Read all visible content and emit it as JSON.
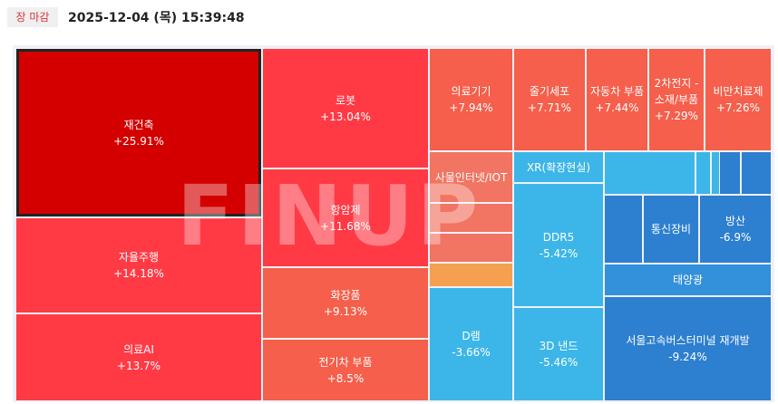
{
  "header": {
    "badge": "장 마감",
    "timestamp": "2025-12-04 (목) 15:39:48"
  },
  "watermark": "FINUP",
  "tiles": [
    {
      "label": "재건축",
      "change": "+25.91%"
    },
    {
      "label": "자율주행",
      "change": "+14.18%"
    },
    {
      "label": "의료AI",
      "change": "+13.7%"
    },
    {
      "label": "로봇",
      "change": "+13.04%"
    },
    {
      "label": "항암제",
      "change": "+11.68%"
    },
    {
      "label": "화장품",
      "change": "+9.13%"
    },
    {
      "label": "전기차 부품",
      "change": "+8.5%"
    },
    {
      "label": "의료기기",
      "change": "+7.94%"
    },
    {
      "label": "줄기세포",
      "change": "+7.71%"
    },
    {
      "label": "자동차 부품",
      "change": "+7.44%"
    },
    {
      "label": "2차전지 - 소재/부품",
      "change": "+7.29%"
    },
    {
      "label": "비만치료제",
      "change": "+7.26%"
    },
    {
      "label": "사물인터넷/IOT"
    },
    {
      "label": "D램",
      "change": "-3.66%"
    },
    {
      "label": "XR(확장현실)"
    },
    {
      "label": "DDR5",
      "change": "-5.42%"
    },
    {
      "label": "3D 낸드",
      "change": "-5.46%"
    },
    {
      "label": "통신장비"
    },
    {
      "label": "방산",
      "change": "-6.9%"
    },
    {
      "label": "태양광"
    },
    {
      "label": "서울고속버스터미널 재개발",
      "change": "-9.24%"
    }
  ]
}
